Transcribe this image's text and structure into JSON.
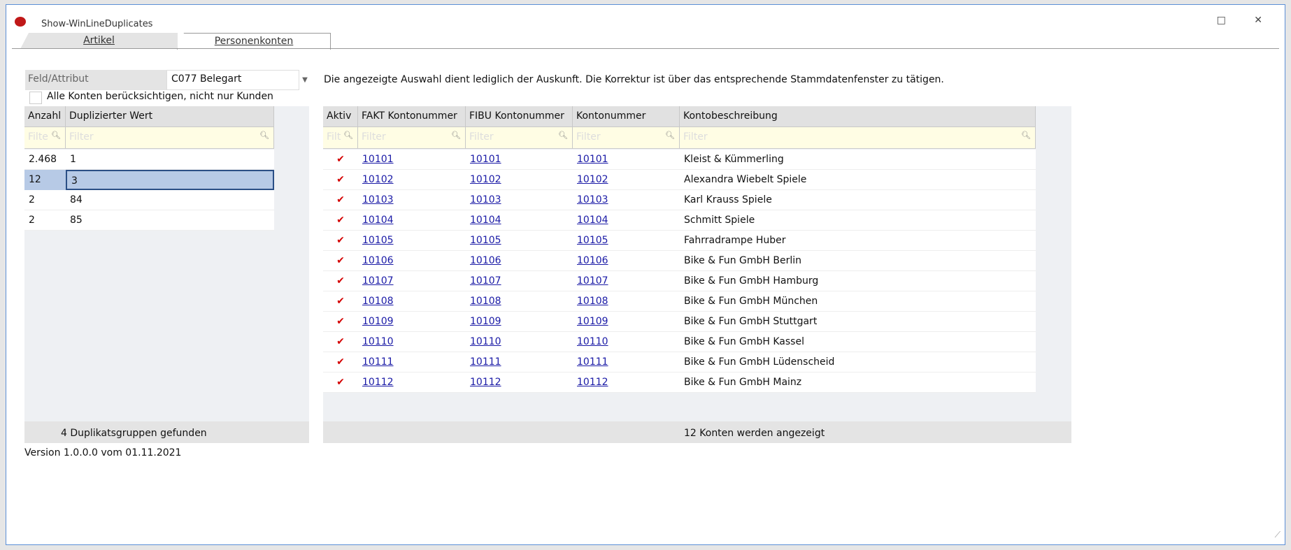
{
  "window": {
    "title": "Show-WinLineDuplicates",
    "controls": "□ ✕"
  },
  "tabs": [
    {
      "label": "Artikel"
    },
    {
      "label": "Personenkonten",
      "active": true
    }
  ],
  "field": {
    "label": "Feld/Attribut",
    "value": "C077 Belegart"
  },
  "checkbox": {
    "label": "Alle Konten berücksichtigen, nicht nur Kunden",
    "checked": false
  },
  "info": "Die angezeigte Auswahl dient lediglich der Auskunft. Die Korrektur ist über das entsprechende Stammdatenfenster zu tätigen.",
  "left_grid": {
    "headers": [
      "Anzahl",
      "Duplizierter Wert"
    ],
    "filters": [
      "Filte",
      "Filter"
    ],
    "rows": [
      [
        "2.468",
        "1"
      ],
      [
        "12",
        "3"
      ],
      [
        "2",
        "84"
      ],
      [
        "2",
        "85"
      ]
    ],
    "selected": 1,
    "footer": "4 Duplikatsgruppen gefunden"
  },
  "right_grid": {
    "headers": [
      "Aktiv",
      "FAKT Kontonummer",
      "FIBU Kontonummer",
      "Kontonummer",
      "Kontobeschreibung"
    ],
    "filters": [
      "Filt",
      "Filter",
      "Filter",
      "Filter",
      "Filter"
    ],
    "rows": [
      [
        "✔",
        "10101",
        "10101",
        "10101",
        "Kleist & Kümmerling"
      ],
      [
        "✔",
        "10102",
        "10102",
        "10102",
        "Alexandra Wiebelt Spiele"
      ],
      [
        "✔",
        "10103",
        "10103",
        "10103",
        "Karl Krauss Spiele"
      ],
      [
        "✔",
        "10104",
        "10104",
        "10104",
        "Schmitt Spiele"
      ],
      [
        "✔",
        "10105",
        "10105",
        "10105",
        "Fahrradrampe Huber"
      ],
      [
        "✔",
        "10106",
        "10106",
        "10106",
        "Bike & Fun GmbH Berlin"
      ],
      [
        "✔",
        "10107",
        "10107",
        "10107",
        "Bike & Fun GmbH Hamburg"
      ],
      [
        "✔",
        "10108",
        "10108",
        "10108",
        "Bike & Fun GmbH München"
      ],
      [
        "✔",
        "10109",
        "10109",
        "10109",
        "Bike & Fun GmbH Stuttgart"
      ],
      [
        "✔",
        "10110",
        "10110",
        "10110",
        "Bike & Fun GmbH Kassel"
      ],
      [
        "✔",
        "10111",
        "10111",
        "10111",
        "Bike & Fun GmbH Lüdenscheid"
      ],
      [
        "✔",
        "10112",
        "10112",
        "10112",
        "Bike & Fun GmbH Mainz"
      ]
    ],
    "footer": "12 Konten werden angezeigt"
  },
  "version": "Version 1.0.0.0 vom 01.11.2021",
  "colors": {
    "accent": "#5b8fd6",
    "link": "#1a1aa6",
    "check": "#d40000",
    "selection": "#b7cae6",
    "filter_bg": "#fffde4"
  }
}
